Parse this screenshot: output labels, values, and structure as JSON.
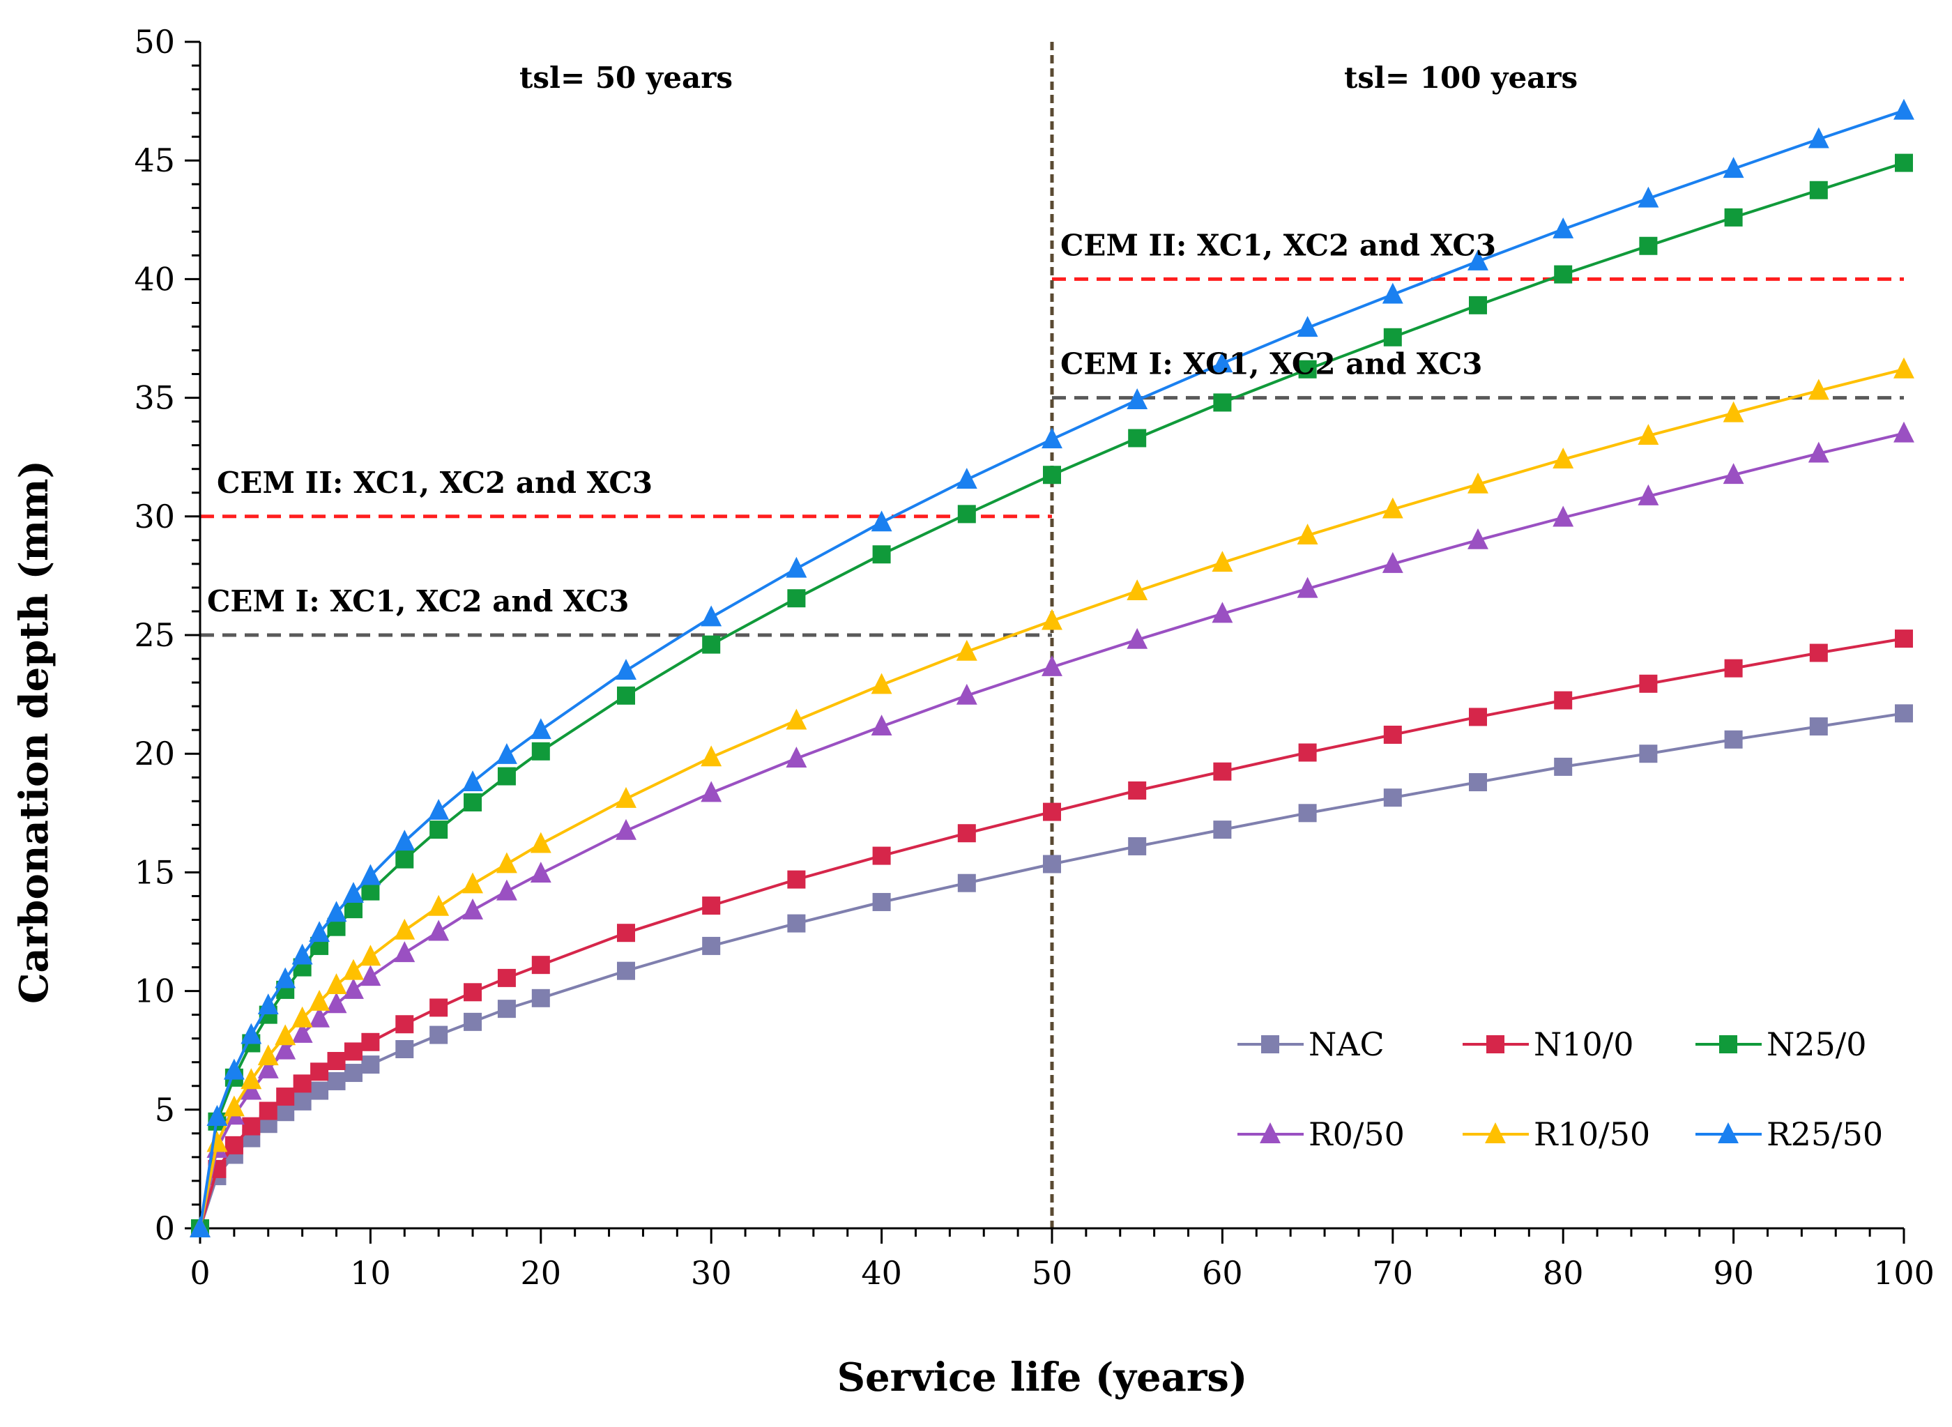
{
  "chart_data": {
    "type": "line",
    "xlabel": "Service life (years)",
    "ylabel": "Carbonation depth (mm)",
    "xlim": [
      0,
      100
    ],
    "ylim": [
      0,
      50
    ],
    "xticks": [
      0,
      10,
      20,
      30,
      40,
      50,
      60,
      70,
      80,
      90,
      100
    ],
    "yticks": [
      0,
      5,
      10,
      15,
      20,
      25,
      30,
      35,
      40,
      45,
      50
    ],
    "grid": false,
    "legend_position": "bottom-right",
    "x": [
      0,
      1,
      2,
      3,
      4,
      5,
      6,
      7,
      8,
      9,
      10,
      12,
      14,
      16,
      18,
      20,
      25,
      30,
      35,
      40,
      45,
      50,
      55,
      60,
      65,
      70,
      75,
      80,
      85,
      90,
      95,
      100
    ],
    "series": [
      {
        "name": "NAC",
        "color": "#7f7fae",
        "marker": "square",
        "values": [
          0,
          2.2,
          3.1,
          3.8,
          4.4,
          4.9,
          5.35,
          5.8,
          6.2,
          6.55,
          6.9,
          7.55,
          8.15,
          8.7,
          9.25,
          9.7,
          10.85,
          11.9,
          12.85,
          13.75,
          14.55,
          15.35,
          16.1,
          16.8,
          17.5,
          18.15,
          18.8,
          19.45,
          20.0,
          20.6,
          21.15,
          21.7
        ]
      },
      {
        "name": "N10/0",
        "color": "#d6264a",
        "marker": "square",
        "values": [
          0,
          2.5,
          3.5,
          4.3,
          4.95,
          5.55,
          6.1,
          6.6,
          7.05,
          7.45,
          7.85,
          8.6,
          9.3,
          9.95,
          10.55,
          11.1,
          12.45,
          13.6,
          14.7,
          15.7,
          16.65,
          17.55,
          18.45,
          19.25,
          20.05,
          20.8,
          21.55,
          22.25,
          22.95,
          23.6,
          24.25,
          24.85
        ]
      },
      {
        "name": "N25/0",
        "color": "#109a3a",
        "marker": "square",
        "values": [
          0,
          4.5,
          6.35,
          7.8,
          9.0,
          10.05,
          11.0,
          11.9,
          12.7,
          13.45,
          14.2,
          15.55,
          16.8,
          17.95,
          19.05,
          20.1,
          22.45,
          24.6,
          26.55,
          28.4,
          30.1,
          31.75,
          33.3,
          34.8,
          36.2,
          37.55,
          38.9,
          40.2,
          41.4,
          42.6,
          43.75,
          44.9
        ]
      },
      {
        "name": "R0/50",
        "color": "#9a50c2",
        "marker": "triangle",
        "values": [
          0,
          3.35,
          4.75,
          5.8,
          6.7,
          7.5,
          8.2,
          8.85,
          9.45,
          10.05,
          10.6,
          11.6,
          12.5,
          13.4,
          14.2,
          14.95,
          16.75,
          18.35,
          19.8,
          21.15,
          22.45,
          23.65,
          24.8,
          25.9,
          26.95,
          28.0,
          29.0,
          29.95,
          30.85,
          31.75,
          32.65,
          33.5
        ]
      },
      {
        "name": "R10/50",
        "color": "#ffc000",
        "marker": "triangle",
        "values": [
          0,
          3.6,
          5.1,
          6.25,
          7.25,
          8.1,
          8.85,
          9.55,
          10.25,
          10.85,
          11.45,
          12.55,
          13.55,
          14.5,
          15.35,
          16.2,
          18.1,
          19.85,
          21.4,
          22.9,
          24.3,
          25.6,
          26.85,
          28.05,
          29.2,
          30.3,
          31.35,
          32.4,
          33.4,
          34.35,
          35.3,
          36.2
        ]
      },
      {
        "name": "R25/50",
        "color": "#1a80f0",
        "marker": "triangle",
        "values": [
          0,
          4.7,
          6.65,
          8.15,
          9.4,
          10.5,
          11.5,
          12.45,
          13.3,
          14.1,
          14.85,
          16.3,
          17.6,
          18.8,
          19.95,
          21.0,
          23.5,
          25.75,
          27.8,
          29.75,
          31.55,
          33.25,
          34.9,
          36.45,
          37.95,
          39.35,
          40.75,
          42.1,
          43.4,
          44.65,
          45.9,
          47.1
        ]
      }
    ],
    "reference_lines": {
      "period_divider": {
        "x": 50,
        "color": "#5a4a32"
      },
      "thresholds": [
        {
          "label": "CEM II: XC1, XC2 and XC3",
          "y": 30,
          "x_from": 0,
          "x_to": 50,
          "color": "#ff1e1e"
        },
        {
          "label": "CEM I: XC1, XC2 and XC3",
          "y": 25,
          "x_from": 0,
          "x_to": 50,
          "color": "#595959"
        },
        {
          "label": "CEM II: XC1, XC2 and XC3",
          "y": 40,
          "x_from": 50,
          "x_to": 100,
          "color": "#ff1e1e"
        },
        {
          "label": "CEM I: XC1, XC2 and XC3",
          "y": 35,
          "x_from": 50,
          "x_to": 100,
          "color": "#595959"
        }
      ]
    },
    "annotations": [
      {
        "text": "tsl= 50 years",
        "x": 25,
        "y": 48.5
      },
      {
        "text": "tsl= 100 years",
        "x": 74,
        "y": 48.5
      }
    ]
  }
}
